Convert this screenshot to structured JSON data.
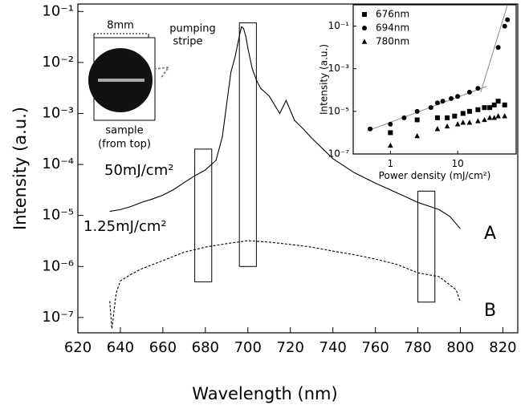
{
  "chart_data": [
    {
      "type": "line",
      "xlabel": "Wavelength (nm)",
      "ylabel": "Intensity (a.u.)",
      "xlim": [
        620,
        827
      ],
      "xticks": [
        620,
        640,
        660,
        680,
        700,
        720,
        740,
        760,
        780,
        800,
        820
      ],
      "yscale": "log",
      "ylim": [
        5e-08,
        0.14
      ],
      "yticks": [
        {
          "value": 1e-07,
          "label": "10⁻⁷"
        },
        {
          "value": 1e-06,
          "label": "10⁻⁶"
        },
        {
          "value": 1e-05,
          "label": "10⁻⁵"
        },
        {
          "value": 0.0001,
          "label": "10⁻⁴"
        },
        {
          "value": 0.001,
          "label": "10⁻³"
        },
        {
          "value": 0.01,
          "label": "10⁻²"
        },
        {
          "value": 0.1,
          "label": "10⁻¹"
        }
      ],
      "series": [
        {
          "name": "A",
          "color": "#000000",
          "linestyle": "solid",
          "x": [
            635,
            640,
            645,
            650,
            655,
            660,
            665,
            670,
            675,
            680,
            685,
            688,
            690,
            692,
            694,
            696,
            697,
            698,
            699,
            700,
            702,
            704,
            706,
            710,
            715,
            718,
            722,
            726,
            730,
            740,
            750,
            760,
            770,
            780,
            790,
            795,
            800
          ],
          "values": [
            1.2e-05,
            1.3e-05,
            1.5e-05,
            1.8e-05,
            2.1e-05,
            2.5e-05,
            3.2e-05,
            4.4e-05,
            6e-05,
            7.8e-05,
            0.00012,
            0.00035,
            0.0015,
            0.0064,
            0.013,
            0.033,
            0.05,
            0.046,
            0.033,
            0.019,
            0.0077,
            0.0045,
            0.0031,
            0.0022,
            0.001,
            0.0018,
            0.00073,
            0.0005,
            0.00033,
            0.00013,
            6.9e-05,
            4.3e-05,
            2.8e-05,
            1.8e-05,
            1.3e-05,
            9.6e-06,
            5.5e-06
          ]
        },
        {
          "name": "B",
          "color": "#000000",
          "linestyle": "dashed",
          "x": [
            635,
            636,
            638,
            640,
            645,
            650,
            660,
            670,
            680,
            690,
            700,
            710,
            720,
            730,
            740,
            750,
            760,
            770,
            780,
            790,
            798,
            800
          ],
          "values": [
            2.1e-07,
            6e-08,
            3e-07,
            5.2e-07,
            7e-07,
            9e-07,
            1.3e-06,
            1.9e-06,
            2.4e-06,
            2.8e-06,
            3.2e-06,
            3e-06,
            2.7e-06,
            2.4e-06,
            2e-06,
            1.7e-06,
            1.4e-06,
            1.1e-06,
            7.5e-07,
            6.3e-07,
            3.5e-07,
            2e-07
          ]
        }
      ],
      "highlight_boxes": [
        {
          "x": [
            675,
            683
          ],
          "y": [
            5e-07,
            0.0002
          ]
        },
        {
          "x": [
            696,
            704
          ],
          "y": [
            1e-06,
            0.06
          ]
        },
        {
          "x": [
            780,
            788
          ],
          "y": [
            2e-07,
            3e-05
          ]
        }
      ],
      "annotations": [
        "50mJ/cm²",
        "1.25mJ/cm²",
        "8mm",
        "pumping",
        "stripe",
        "sample",
        "(from top)"
      ]
    },
    {
      "type": "scatter",
      "xlabel": "Power density (mJ/cm²)",
      "ylabel": "Intensity (a.u.)",
      "xscale": "log",
      "xlim": [
        0.28,
        74
      ],
      "xticks": [
        1,
        10
      ],
      "yscale": "log",
      "ylim": [
        1e-07,
        1
      ],
      "yticks": [
        {
          "value": 1e-07,
          "label": "10⁻⁷"
        },
        {
          "value": 1e-05,
          "label": "10⁻⁵"
        },
        {
          "value": 0.001,
          "label": "10⁻³"
        },
        {
          "value": 0.1,
          "label": "10⁻¹"
        }
      ],
      "legend": "upper left",
      "series": [
        {
          "name": "676nm",
          "marker": "square",
          "color": "#000000",
          "x": [
            1,
            2.5,
            5,
            7,
            9,
            12,
            15,
            20,
            25,
            30,
            35,
            40,
            50
          ],
          "values": [
            1e-06,
            4e-06,
            5e-06,
            5e-06,
            6e-06,
            8e-06,
            1e-05,
            1.2e-05,
            1.5e-05,
            1.5e-05,
            2e-05,
            3e-05,
            2e-05
          ]
        },
        {
          "name": "694nm",
          "marker": "circle",
          "color": "#000000",
          "x": [
            0.5,
            1,
            1.6,
            2.5,
            4,
            5,
            6,
            8,
            10,
            15,
            20,
            40,
            50,
            55
          ],
          "values": [
            1.5e-06,
            2.5e-06,
            5e-06,
            1e-05,
            1.5e-05,
            2.5e-05,
            3e-05,
            4e-05,
            5e-05,
            8e-05,
            0.00012,
            0.01,
            0.1,
            0.2
          ]
        },
        {
          "name": "780nm",
          "marker": "triangle",
          "color": "#000000",
          "x": [
            1,
            2.5,
            5,
            7,
            10,
            12,
            15,
            20,
            25,
            30,
            35,
            40,
            50
          ],
          "values": [
            2.5e-07,
            7e-07,
            1.5e-06,
            2e-06,
            2.5e-06,
            3e-06,
            3e-06,
            3.5e-06,
            4e-06,
            5e-06,
            5e-06,
            6e-06,
            6e-06
          ]
        }
      ],
      "fit_lines": [
        {
          "color": "#888888",
          "x": [
            0.45,
            27
          ],
          "y": [
            1.2e-06,
            0.00015
          ]
        },
        {
          "color": "#888888",
          "x": [
            22,
            55
          ],
          "y": [
            8e-05,
            1
          ]
        }
      ]
    }
  ]
}
